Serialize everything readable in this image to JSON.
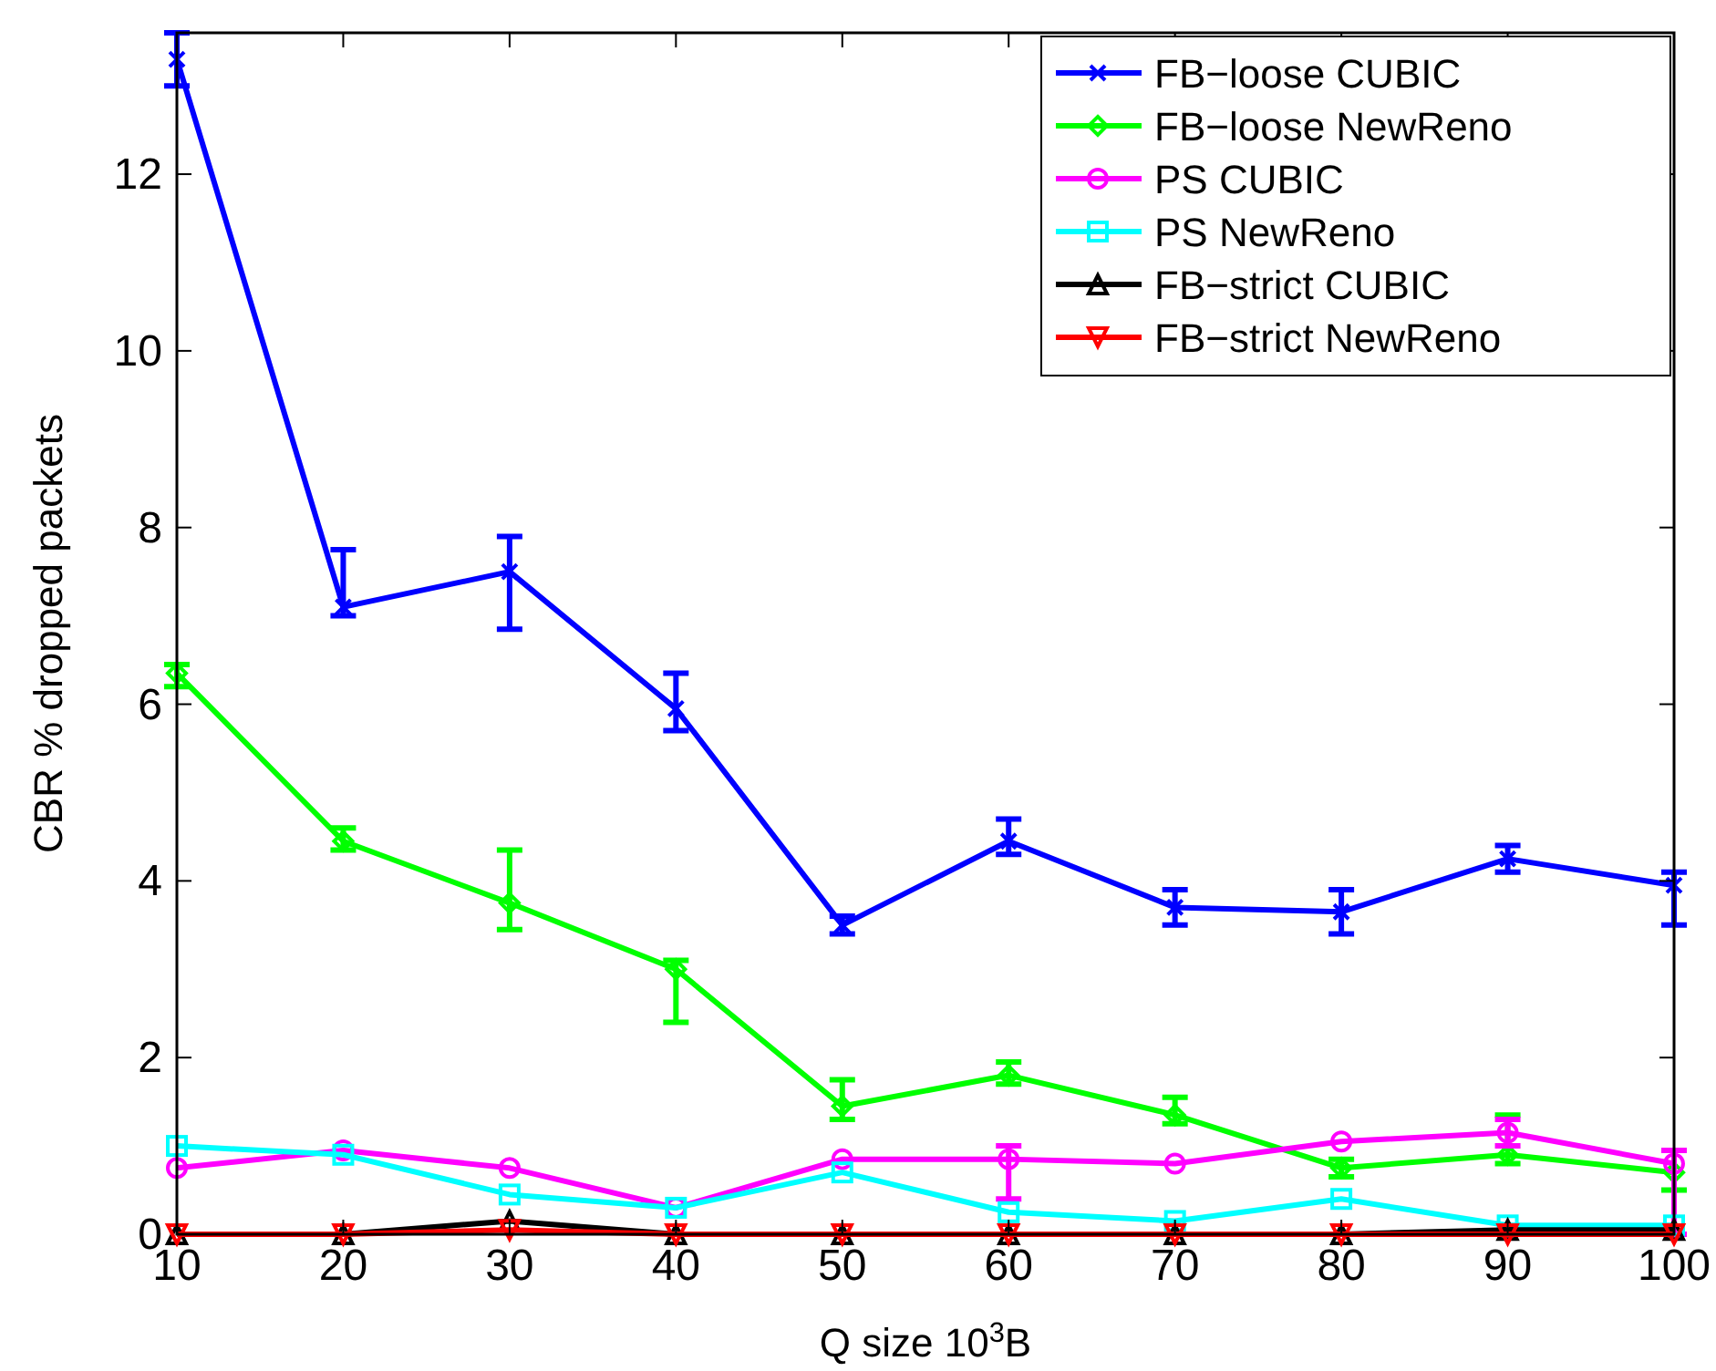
{
  "chart_data": {
    "type": "line",
    "xlabel": "Q size 10$^{3}$B",
    "ylabel": "CBR % dropped packets",
    "x": [
      10,
      20,
      30,
      40,
      50,
      60,
      70,
      80,
      90,
      100
    ],
    "xlim": [
      10,
      100
    ],
    "xticks": [
      10,
      20,
      30,
      40,
      50,
      60,
      70,
      80,
      90,
      100
    ],
    "ylim": [
      0,
      13.6
    ],
    "yticks": [
      0,
      2,
      4,
      6,
      8,
      10,
      12
    ],
    "grid": false,
    "legend": "top right",
    "line_style": "solid",
    "series": [
      {
        "name": "FB−loose CUBIC",
        "color": "#0000ff",
        "marker": "cross",
        "values": [
          13.3,
          7.1,
          7.5,
          5.95,
          3.5,
          4.45,
          3.7,
          3.65,
          4.25,
          3.95
        ],
        "errors": [
          0.3,
          [
            7.0,
            7.75
          ],
          [
            6.85,
            7.9
          ],
          [
            5.7,
            6.35
          ],
          [
            3.4,
            3.6
          ],
          [
            4.3,
            4.7
          ],
          [
            3.5,
            3.9
          ],
          [
            3.4,
            3.9
          ],
          [
            4.1,
            4.4
          ],
          [
            3.5,
            4.1
          ]
        ]
      },
      {
        "name": "FB−loose NewReno",
        "color": "#00ff00",
        "marker": "diamond",
        "values": [
          6.35,
          4.45,
          3.75,
          3.0,
          1.45,
          1.8,
          1.35,
          0.75,
          0.9,
          0.7
        ],
        "errors": [
          [
            6.2,
            6.45
          ],
          [
            4.35,
            4.6
          ],
          [
            3.45,
            4.35
          ],
          [
            2.4,
            3.1
          ],
          [
            1.3,
            1.75
          ],
          [
            1.7,
            1.95
          ],
          [
            1.25,
            1.55
          ],
          [
            0.65,
            0.85
          ],
          [
            0.8,
            1.35
          ],
          [
            0.5,
            0.95
          ]
        ]
      },
      {
        "name": "PS CUBIC",
        "color": "#ff00ff",
        "marker": "circle",
        "values": [
          0.75,
          0.95,
          0.75,
          0.3,
          0.85,
          0.85,
          0.8,
          1.05,
          1.15,
          0.8
        ],
        "errors": [
          null,
          null,
          null,
          null,
          null,
          [
            0.4,
            1.0
          ],
          null,
          null,
          [
            1.0,
            1.3
          ],
          [
            0,
            0.95
          ]
        ]
      },
      {
        "name": "PS NewReno",
        "color": "#00ffff",
        "marker": "square",
        "values": [
          1.0,
          0.9,
          0.45,
          0.3,
          0.7,
          0.25,
          0.15,
          0.4,
          0.1,
          0.1
        ]
      },
      {
        "name": "FB−strict CUBIC",
        "color": "#000000",
        "marker": "triangle",
        "values": [
          0,
          0,
          0.15,
          0,
          0,
          0,
          0,
          0,
          0.05,
          0.05
        ]
      },
      {
        "name": "FB−strict NewReno",
        "color": "#ff0000",
        "marker": "triangle",
        "values": [
          0,
          0,
          0.05,
          0,
          0,
          0,
          0,
          0,
          0,
          0
        ]
      }
    ]
  }
}
